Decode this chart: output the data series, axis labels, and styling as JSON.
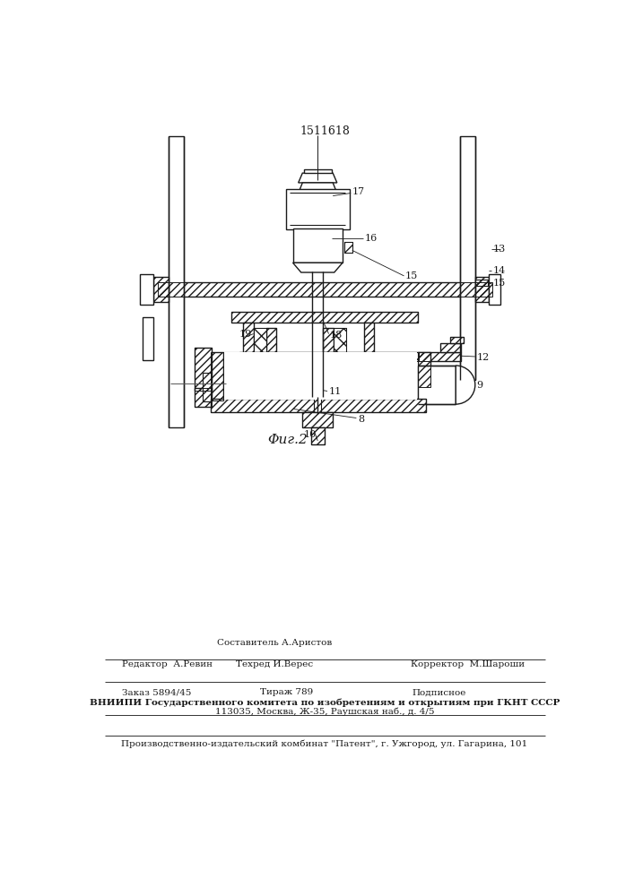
{
  "title": "1511618",
  "fig_label": "Φиг.2",
  "background_color": "#ffffff",
  "line_color": "#1a1a1a",
  "figsize": [
    7.07,
    10.0
  ],
  "dpi": 100,
  "footer": {
    "line1_left": "Редактор  А.Ревин",
    "line1_center1": "Составитель А.Аристов",
    "line1_center2": "Техред И.Верес",
    "line1_right": "Корректор  М.Шароши",
    "line2_1": "Заказ 5894/45",
    "line2_2": "Тираж 789",
    "line2_3": "Подписное",
    "line3_bold": "ВНИИПИ Государственного комитета по изобретениям и открытиям при ГКНТ СССР",
    "line3_normal": "113035, Москва, Ж-35, Раушская наб., д. 4/5",
    "line4": "Производственно-издательский комбинат \"Патент\", г. Ужгород, ул. Гагарина, 101"
  }
}
